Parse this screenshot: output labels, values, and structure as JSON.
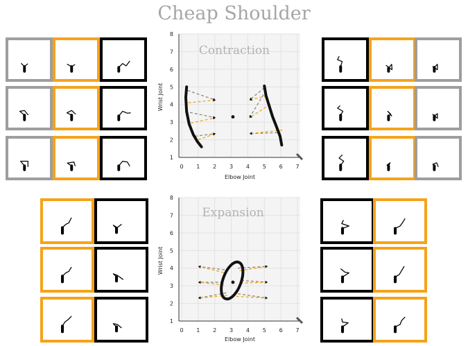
{
  "title": "Cheap Shoulder",
  "colors": {
    "gray": "#9e9e9e",
    "orange": "#f5a31a",
    "black": "#000000",
    "annotation": "#b3b3b3"
  },
  "plots": [
    {
      "id": "contraction",
      "annotation": "Contraction",
      "xlabel": "Elbow Joint",
      "ylabel": "Wrist Joint",
      "xlim": [
        0,
        7
      ],
      "ylim": [
        1,
        8
      ],
      "xticks": [
        "0",
        "1",
        "2",
        "3",
        "4",
        "5",
        "6",
        "7"
      ],
      "yticks": [
        "1",
        "2",
        "3",
        "4",
        "5",
        "6",
        "7",
        "8"
      ]
    },
    {
      "id": "expansion",
      "annotation": "Expansion",
      "xlabel": "Elbow Joint",
      "ylabel": "Wrist Joint",
      "xlim": [
        0,
        7
      ],
      "ylim": [
        1,
        8
      ],
      "xticks": [
        "0",
        "1",
        "2",
        "3",
        "4",
        "5",
        "6",
        "7"
      ],
      "yticks": [
        "1",
        "2",
        "3",
        "4",
        "5",
        "6",
        "7",
        "8"
      ]
    }
  ],
  "chart_data": [
    {
      "type": "scatter",
      "annotation": "Contraction",
      "xlabel": "Elbow Joint",
      "ylabel": "Wrist Joint",
      "xlim": [
        0,
        7
      ],
      "ylim": [
        1,
        8
      ],
      "center": [
        3.1,
        3.3
      ],
      "trajectories": [
        {
          "x": [
            0.3,
            0.25,
            0.3,
            0.45,
            0.7,
            0.95,
            1.2
          ],
          "y": [
            5.0,
            4.4,
            3.6,
            2.9,
            2.3,
            1.9,
            1.6
          ]
        },
        {
          "x": [
            5.0,
            5.1,
            5.3,
            5.5,
            5.75,
            5.95,
            6.05
          ],
          "y": [
            5.05,
            4.5,
            3.9,
            3.3,
            2.7,
            2.2,
            1.7
          ]
        }
      ],
      "arrows": [
        {
          "from": [
            0.35,
            4.8
          ],
          "to": [
            2.05,
            4.25
          ],
          "color": "gray"
        },
        {
          "from": [
            0.4,
            4.1
          ],
          "to": [
            2.05,
            4.25
          ],
          "color": "orange"
        },
        {
          "from": [
            0.5,
            3.55
          ],
          "to": [
            2.05,
            3.25
          ],
          "color": "gray"
        },
        {
          "from": [
            0.55,
            2.95
          ],
          "to": [
            2.05,
            3.25
          ],
          "color": "orange"
        },
        {
          "from": [
            0.8,
            2.2
          ],
          "to": [
            2.05,
            2.35
          ],
          "color": "gray"
        },
        {
          "from": [
            1.0,
            2.0
          ],
          "to": [
            2.05,
            2.35
          ],
          "color": "orange"
        },
        {
          "from": [
            5.0,
            4.95
          ],
          "to": [
            4.1,
            4.25
          ],
          "color": "gray"
        },
        {
          "from": [
            5.15,
            4.5
          ],
          "to": [
            4.1,
            4.25
          ],
          "color": "orange"
        },
        {
          "from": [
            5.1,
            4.8
          ],
          "to": [
            4.1,
            3.25
          ],
          "color": "gray"
        },
        {
          "from": [
            5.35,
            4.0
          ],
          "to": [
            4.1,
            3.25
          ],
          "color": "orange"
        },
        {
          "from": [
            5.8,
            2.4
          ],
          "to": [
            4.1,
            2.35
          ],
          "color": "gray"
        },
        {
          "from": [
            6.1,
            2.55
          ],
          "to": [
            4.1,
            2.35
          ],
          "color": "orange"
        }
      ]
    },
    {
      "type": "scatter",
      "annotation": "Expansion",
      "xlabel": "Elbow Joint",
      "ylabel": "Wrist Joint",
      "xlim": [
        0,
        7
      ],
      "ylim": [
        1,
        8
      ],
      "center": [
        3.1,
        3.2
      ],
      "ellipse": {
        "cx": 3.05,
        "cy": 3.3,
        "rx": 0.55,
        "ry": 1.1,
        "tilt": 20
      },
      "arrows": [
        {
          "from": [
            2.6,
            3.9
          ],
          "to": [
            1.0,
            4.1
          ],
          "color": "gray"
        },
        {
          "from": [
            2.55,
            3.75
          ],
          "to": [
            1.0,
            4.1
          ],
          "color": "orange"
        },
        {
          "from": [
            2.5,
            3.2
          ],
          "to": [
            1.0,
            3.2
          ],
          "color": "gray"
        },
        {
          "from": [
            2.55,
            3.05
          ],
          "to": [
            1.0,
            3.2
          ],
          "color": "orange"
        },
        {
          "from": [
            2.7,
            2.6
          ],
          "to": [
            1.0,
            2.3
          ],
          "color": "gray"
        },
        {
          "from": [
            2.75,
            2.45
          ],
          "to": [
            1.0,
            2.3
          ],
          "color": "orange"
        },
        {
          "from": [
            3.4,
            4.0
          ],
          "to": [
            5.2,
            4.1
          ],
          "color": "gray"
        },
        {
          "from": [
            3.5,
            3.85
          ],
          "to": [
            5.2,
            4.1
          ],
          "color": "orange"
        },
        {
          "from": [
            3.6,
            3.3
          ],
          "to": [
            5.2,
            3.2
          ],
          "color": "gray"
        },
        {
          "from": [
            3.55,
            3.15
          ],
          "to": [
            5.2,
            3.2
          ],
          "color": "orange"
        },
        {
          "from": [
            3.4,
            2.55
          ],
          "to": [
            5.2,
            2.3
          ],
          "color": "gray"
        },
        {
          "from": [
            3.3,
            2.4
          ],
          "to": [
            5.2,
            2.3
          ],
          "color": "orange"
        }
      ]
    }
  ],
  "tiles": [
    {
      "color": "gray",
      "pts": [
        [
          28,
          80
        ],
        [
          28,
          68
        ],
        [
          20,
          60
        ],
        [
          28,
          68
        ],
        [
          36,
          61
        ]
      ]
    },
    {
      "color": "orange",
      "pts": [
        [
          28,
          80
        ],
        [
          28,
          68
        ],
        [
          17,
          62
        ],
        [
          28,
          68
        ],
        [
          36,
          63
        ]
      ]
    },
    {
      "color": "black",
      "pts": [
        [
          28,
          80
        ],
        [
          28,
          70
        ],
        [
          38,
          60
        ],
        [
          47,
          66
        ],
        [
          56,
          54
        ]
      ]
    },
    {
      "color": "gray",
      "pts": [
        [
          28,
          80
        ],
        [
          28,
          68
        ],
        [
          16,
          58
        ],
        [
          28,
          56
        ],
        [
          37,
          67
        ]
      ]
    },
    {
      "color": "orange",
      "pts": [
        [
          28,
          80
        ],
        [
          28,
          68
        ],
        [
          16,
          62
        ],
        [
          28,
          56
        ],
        [
          38,
          65
        ]
      ]
    },
    {
      "color": "black",
      "pts": [
        [
          28,
          80
        ],
        [
          28,
          70
        ],
        [
          38,
          58
        ],
        [
          50,
          63
        ],
        [
          58,
          62
        ]
      ]
    },
    {
      "color": "gray",
      "pts": [
        [
          28,
          80
        ],
        [
          28,
          70
        ],
        [
          18,
          58
        ],
        [
          37,
          58
        ],
        [
          37,
          72
        ]
      ]
    },
    {
      "color": "orange",
      "pts": [
        [
          28,
          80
        ],
        [
          28,
          70
        ],
        [
          17,
          63
        ],
        [
          34,
          60
        ],
        [
          37,
          70
        ]
      ]
    },
    {
      "color": "black",
      "pts": [
        [
          28,
          80
        ],
        [
          28,
          70
        ],
        [
          38,
          58
        ],
        [
          50,
          60
        ],
        [
          56,
          70
        ]
      ]
    },
    {
      "color": "black",
      "pts": [
        [
          28,
          80
        ],
        [
          28,
          68
        ],
        [
          32,
          55
        ],
        [
          20,
          50
        ],
        [
          24,
          42
        ]
      ]
    },
    {
      "color": "orange",
      "pts": [
        [
          30,
          80
        ],
        [
          30,
          72
        ],
        [
          38,
          62
        ],
        [
          39,
          76
        ],
        [
          24,
          65
        ]
      ]
    },
    {
      "color": "gray",
      "pts": [
        [
          30,
          80
        ],
        [
          30,
          70
        ],
        [
          38,
          62
        ],
        [
          38,
          76
        ],
        [
          26,
          68
        ]
      ]
    },
    {
      "color": "black",
      "pts": [
        [
          28,
          80
        ],
        [
          28,
          68
        ],
        [
          34,
          58
        ],
        [
          20,
          50
        ],
        [
          26,
          44
        ]
      ]
    },
    {
      "color": "orange",
      "pts": [
        [
          30,
          80
        ],
        [
          30,
          70
        ],
        [
          36,
          66
        ],
        [
          28,
          58
        ],
        [
          38,
          70
        ]
      ]
    },
    {
      "color": "gray",
      "pts": [
        [
          30,
          80
        ],
        [
          30,
          70
        ],
        [
          38,
          64
        ],
        [
          38,
          76
        ],
        [
          26,
          66
        ]
      ]
    },
    {
      "color": "black",
      "pts": [
        [
          28,
          80
        ],
        [
          28,
          68
        ],
        [
          36,
          58
        ],
        [
          24,
          50
        ],
        [
          32,
          42
        ]
      ]
    },
    {
      "color": "orange",
      "pts": [
        [
          30,
          80
        ],
        [
          30,
          70
        ],
        [
          34,
          62
        ],
        [
          26,
          68
        ],
        [
          32,
          74
        ]
      ]
    },
    {
      "color": "gray",
      "pts": [
        [
          30,
          80
        ],
        [
          30,
          70
        ],
        [
          26,
          66
        ],
        [
          36,
          62
        ],
        [
          40,
          72
        ]
      ]
    },
    {
      "color": "orange",
      "pts": [
        [
          28,
          80
        ],
        [
          28,
          66
        ],
        [
          36,
          58
        ],
        [
          44,
          54
        ],
        [
          50,
          42
        ]
      ]
    },
    {
      "color": "black",
      "pts": [
        [
          28,
          78
        ],
        [
          28,
          68
        ],
        [
          20,
          60
        ],
        [
          30,
          66
        ],
        [
          40,
          58
        ]
      ]
    },
    {
      "color": "orange",
      "pts": [
        [
          28,
          80
        ],
        [
          28,
          66
        ],
        [
          36,
          58
        ],
        [
          44,
          54
        ],
        [
          50,
          44
        ]
      ]
    },
    {
      "color": "black",
      "pts": [
        [
          28,
          78
        ],
        [
          28,
          68
        ],
        [
          20,
          60
        ],
        [
          30,
          64
        ],
        [
          44,
          74
        ]
      ]
    },
    {
      "color": "orange",
      "pts": [
        [
          28,
          80
        ],
        [
          28,
          66
        ],
        [
          34,
          56
        ],
        [
          42,
          50
        ],
        [
          50,
          42
        ]
      ]
    },
    {
      "color": "black",
      "pts": [
        [
          28,
          78
        ],
        [
          28,
          68
        ],
        [
          20,
          60
        ],
        [
          30,
          62
        ],
        [
          40,
          70
        ]
      ]
    },
    {
      "color": "black",
      "pts": [
        [
          28,
          80
        ],
        [
          28,
          68
        ],
        [
          44,
          62
        ],
        [
          26,
          56
        ],
        [
          30,
          48
        ]
      ]
    },
    {
      "color": "orange",
      "pts": [
        [
          28,
          80
        ],
        [
          28,
          68
        ],
        [
          40,
          62
        ],
        [
          46,
          54
        ],
        [
          52,
          44
        ]
      ]
    },
    {
      "color": "black",
      "pts": [
        [
          28,
          80
        ],
        [
          28,
          68
        ],
        [
          44,
          58
        ],
        [
          34,
          56
        ],
        [
          24,
          48
        ]
      ]
    },
    {
      "color": "orange",
      "pts": [
        [
          28,
          80
        ],
        [
          28,
          68
        ],
        [
          38,
          62
        ],
        [
          44,
          52
        ],
        [
          50,
          42
        ]
      ]
    },
    {
      "color": "black",
      "pts": [
        [
          28,
          80
        ],
        [
          28,
          68
        ],
        [
          42,
          58
        ],
        [
          28,
          56
        ],
        [
          26,
          48
        ]
      ]
    },
    {
      "color": "orange",
      "pts": [
        [
          28,
          80
        ],
        [
          28,
          68
        ],
        [
          40,
          62
        ],
        [
          44,
          52
        ],
        [
          52,
          44
        ]
      ]
    }
  ]
}
